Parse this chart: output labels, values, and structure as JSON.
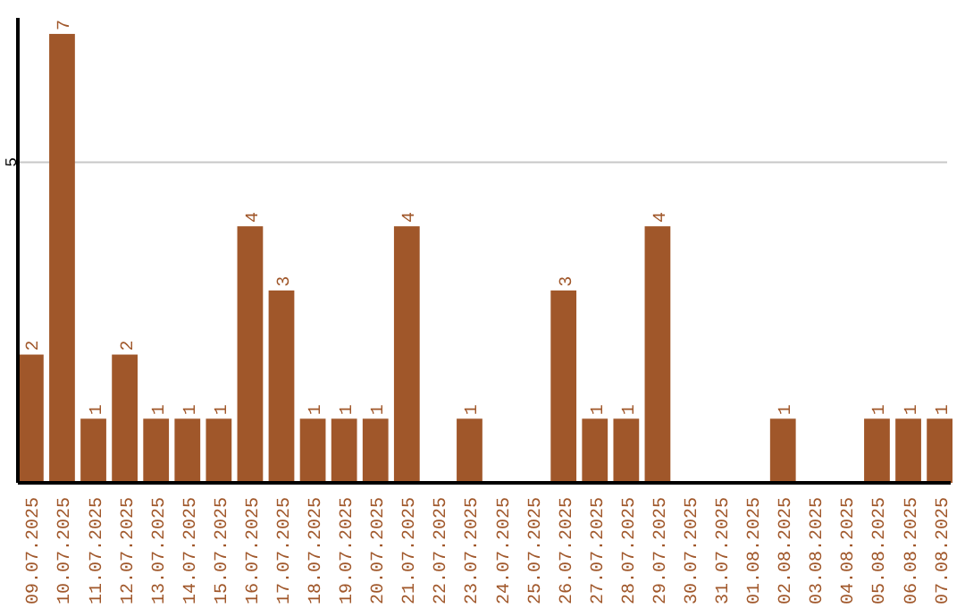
{
  "chart_data": {
    "type": "bar",
    "categories": [
      "09.07.2025",
      "10.07.2025",
      "11.07.2025",
      "12.07.2025",
      "13.07.2025",
      "14.07.2025",
      "15.07.2025",
      "16.07.2025",
      "17.07.2025",
      "18.07.2025",
      "19.07.2025",
      "20.07.2025",
      "21.07.2025",
      "22.07.2025",
      "23.07.2025",
      "24.07.2025",
      "25.07.2025",
      "26.07.2025",
      "27.07.2025",
      "28.07.2025",
      "29.07.2025",
      "30.07.2025",
      "31.07.2025",
      "01.08.2025",
      "02.08.2025",
      "03.08.2025",
      "04.08.2025",
      "05.08.2025",
      "06.08.2025",
      "07.08.2025"
    ],
    "values": [
      2,
      7,
      1,
      2,
      1,
      1,
      1,
      4,
      3,
      1,
      1,
      1,
      4,
      0,
      1,
      0,
      0,
      3,
      1,
      1,
      4,
      0,
      0,
      0,
      1,
      0,
      0,
      1,
      1,
      1
    ],
    "value_labels": [
      "2",
      "7",
      "1",
      "2",
      "1",
      "1",
      "1",
      "4",
      "3",
      "1",
      "1",
      "1",
      "4",
      null,
      "1",
      null,
      null,
      "3",
      "1",
      "1",
      "4",
      null,
      null,
      null,
      "1",
      null,
      null,
      "1",
      "1",
      "1"
    ],
    "color": "#a0572a",
    "ylim": [
      0,
      7.25
    ],
    "yticks": [
      5
    ],
    "grid": "y"
  }
}
